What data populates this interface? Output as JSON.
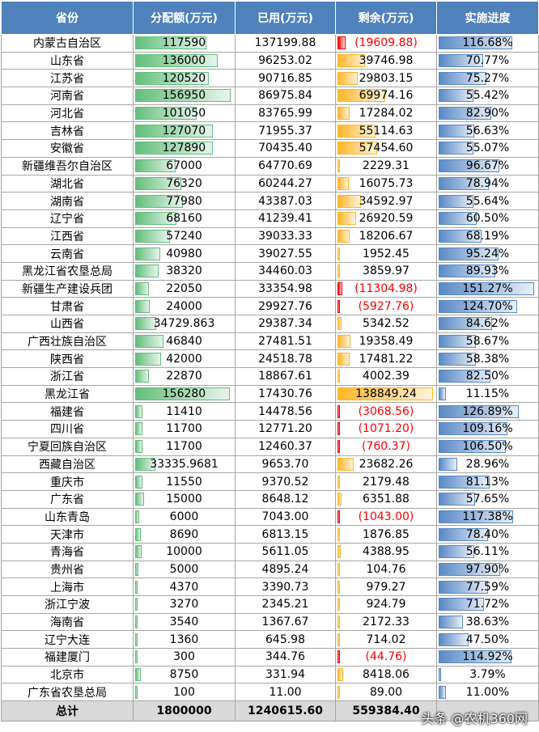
{
  "headers": [
    "省份",
    "分配额(万元)",
    "已用(万元)",
    "剩余(万元)",
    "实施进度"
  ],
  "rows": [
    {
      "name": "内蒙古自治区",
      "alloc": "117590",
      "used": "137199.88",
      "remain": "(19609.88)",
      "progress": "116.68%"
    },
    {
      "name": "山东省",
      "alloc": "136000",
      "used": "96253.02",
      "remain": "39746.98",
      "progress": "70.77%"
    },
    {
      "name": "江苏省",
      "alloc": "120520",
      "used": "90716.85",
      "remain": "29803.15",
      "progress": "75.27%"
    },
    {
      "name": "河南省",
      "alloc": "156950",
      "used": "86975.84",
      "remain": "69974.16",
      "progress": "55.42%"
    },
    {
      "name": "河北省",
      "alloc": "101050",
      "used": "83765.99",
      "remain": "17284.02",
      "progress": "82.90%"
    },
    {
      "name": "吉林省",
      "alloc": "127070",
      "used": "71955.37",
      "remain": "55114.63",
      "progress": "56.63%"
    },
    {
      "name": "安徽省",
      "alloc": "127890",
      "used": "70435.40",
      "remain": "57454.60",
      "progress": "55.07%"
    },
    {
      "name": "新疆维吾尔自治区",
      "alloc": "67000",
      "used": "64770.69",
      "remain": "2229.31",
      "progress": "96.67%"
    },
    {
      "name": "湖北省",
      "alloc": "76320",
      "used": "60244.27",
      "remain": "16075.73",
      "progress": "78.94%"
    },
    {
      "name": "湖南省",
      "alloc": "77980",
      "used": "43387.03",
      "remain": "34592.97",
      "progress": "55.64%"
    },
    {
      "name": "辽宁省",
      "alloc": "68160",
      "used": "41239.41",
      "remain": "26920.59",
      "progress": "60.50%"
    },
    {
      "name": "江西省",
      "alloc": "57240",
      "used": "39033.33",
      "remain": "18206.67",
      "progress": "68.19%"
    },
    {
      "name": "云南省",
      "alloc": "40980",
      "used": "39027.55",
      "remain": "1952.45",
      "progress": "95.24%"
    },
    {
      "name": "黑龙江省农垦总局",
      "alloc": "38320",
      "used": "34460.03",
      "remain": "3859.97",
      "progress": "89.93%"
    },
    {
      "name": "新疆生产建设兵团",
      "alloc": "22050",
      "used": "33354.98",
      "remain": "(11304.98)",
      "progress": "151.27%"
    },
    {
      "name": "甘肃省",
      "alloc": "24000",
      "used": "29927.76",
      "remain": "(5927.76)",
      "progress": "124.70%"
    },
    {
      "name": "山西省",
      "alloc": "34729.863",
      "used": "29387.34",
      "remain": "5342.52",
      "progress": "84.62%"
    },
    {
      "name": "广西壮族自治区",
      "alloc": "46840",
      "used": "27481.51",
      "remain": "19358.49",
      "progress": "58.67%"
    },
    {
      "name": "陕西省",
      "alloc": "42000",
      "used": "24518.78",
      "remain": "17481.22",
      "progress": "58.38%"
    },
    {
      "name": "浙江省",
      "alloc": "22870",
      "used": "18867.61",
      "remain": "4002.39",
      "progress": "82.50%"
    },
    {
      "name": "黑龙江省",
      "alloc": "156280",
      "used": "17430.76",
      "remain": "138849.24",
      "progress": "11.15%"
    },
    {
      "name": "福建省",
      "alloc": "11410",
      "used": "14478.56",
      "remain": "(3068.56)",
      "progress": "126.89%"
    },
    {
      "name": "四川省",
      "alloc": "11700",
      "used": "12771.20",
      "remain": "(1071.20)",
      "progress": "109.16%"
    },
    {
      "name": "宁夏回族自治区",
      "alloc": "11700",
      "used": "12460.37",
      "remain": "(760.37)",
      "progress": "106.50%"
    },
    {
      "name": "西藏自治区",
      "alloc": "33335.9681",
      "used": "9653.70",
      "remain": "23682.26",
      "progress": "28.96%"
    },
    {
      "name": "重庆市",
      "alloc": "11550",
      "used": "9370.52",
      "remain": "2179.48",
      "progress": "81.13%"
    },
    {
      "name": "广东省",
      "alloc": "15000",
      "used": "8648.12",
      "remain": "6351.88",
      "progress": "57.65%"
    },
    {
      "name": "山东青岛",
      "alloc": "6000",
      "used": "7043.00",
      "remain": "(1043.00)",
      "progress": "117.38%"
    },
    {
      "name": "天津市",
      "alloc": "8690",
      "used": "6813.15",
      "remain": "1876.85",
      "progress": "78.40%"
    },
    {
      "name": "青海省",
      "alloc": "10000",
      "used": "5611.05",
      "remain": "4388.95",
      "progress": "56.11%"
    },
    {
      "name": "贵州省",
      "alloc": "5000",
      "used": "4895.24",
      "remain": "104.76",
      "progress": "97.90%"
    },
    {
      "name": "上海市",
      "alloc": "4370",
      "used": "3390.73",
      "remain": "979.27",
      "progress": "77.59%"
    },
    {
      "name": "浙江宁波",
      "alloc": "3270",
      "used": "2345.21",
      "remain": "924.79",
      "progress": "71.72%"
    },
    {
      "name": "海南省",
      "alloc": "3540",
      "used": "1367.67",
      "remain": "2172.33",
      "progress": "38.63%"
    },
    {
      "name": "辽宁大连",
      "alloc": "1360",
      "used": "645.98",
      "remain": "714.02",
      "progress": "47.50%"
    },
    {
      "name": "福建厦门",
      "alloc": "300",
      "used": "344.76",
      "remain": "(44.76)",
      "progress": "114.92%"
    },
    {
      "name": "北京市",
      "alloc": "8750",
      "used": "331.94",
      "remain": "8418.06",
      "progress": "3.79%"
    },
    {
      "name": "广东省农垦总局",
      "alloc": "100",
      "used": "11.00",
      "remain": "89.00",
      "progress": "11.00%"
    }
  ],
  "total": {
    "name": "总计",
    "alloc": "1800000",
    "used": "1240615.60",
    "remain": "559384.40",
    "progress": ""
  },
  "footer_watermark": "头条 @农机360网",
  "colors": {
    "header_bg": "#4f81bd",
    "alloc_bar": "#63be7b",
    "remain_bar": "#ffb628",
    "negative_bar": "#ff0000",
    "progress_bar": "#5a8ac6",
    "negative_text": "#ff0000"
  }
}
